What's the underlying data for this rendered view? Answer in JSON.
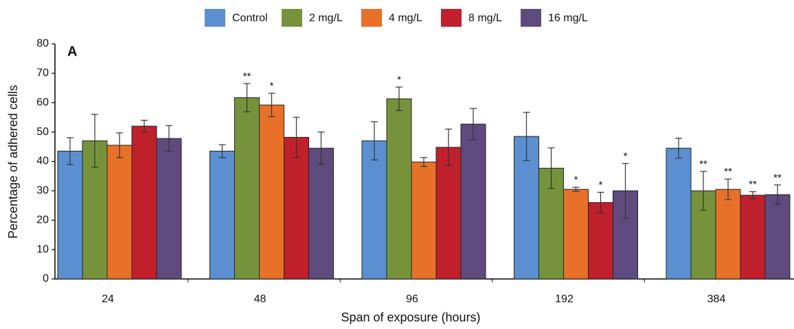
{
  "chart_data": {
    "type": "bar",
    "panel_label": "A",
    "xlabel": "Span of exposure (hours)",
    "ylabel": "Percentage of adhered cells",
    "categories": [
      "24",
      "48",
      "96",
      "192",
      "384"
    ],
    "ylim": [
      0,
      80
    ],
    "yticks": [
      0,
      10,
      20,
      30,
      40,
      50,
      60,
      70,
      80
    ],
    "legend": "top",
    "series": [
      {
        "name": "Control",
        "color": "#5b8fd0",
        "values": [
          43.5,
          43.5,
          47,
          48.5,
          44.5
        ],
        "errors": [
          4.6,
          2.2,
          6.5,
          8.2,
          3.4
        ],
        "annotations": [
          null,
          null,
          null,
          null,
          null
        ]
      },
      {
        "name": "2 mg/L",
        "color": "#76933c",
        "values": [
          47,
          61.7,
          61.3,
          37.7,
          30
        ],
        "errors": [
          9,
          4.8,
          4,
          6.9,
          6.6
        ],
        "annotations": [
          null,
          "**",
          "*",
          null,
          "**"
        ]
      },
      {
        "name": "4 mg/L",
        "color": "#e8712a",
        "values": [
          45.5,
          59.2,
          39.8,
          30.5,
          30.5
        ],
        "errors": [
          4.2,
          4,
          1.5,
          0.7,
          3.5
        ],
        "annotations": [
          null,
          "*",
          null,
          "*",
          "**"
        ]
      },
      {
        "name": "8 mg/L",
        "color": "#c0202c",
        "values": [
          52,
          48.2,
          44.8,
          26,
          28.5
        ],
        "errors": [
          2,
          6.8,
          6.2,
          3.5,
          1.2
        ],
        "annotations": [
          null,
          null,
          null,
          "*",
          "**"
        ]
      },
      {
        "name": "16 mg/L",
        "color": "#5f4a7d",
        "values": [
          47.8,
          44.5,
          52.7,
          30,
          28.7
        ],
        "errors": [
          4.4,
          5.5,
          5.3,
          9.3,
          3.3
        ],
        "annotations": [
          null,
          null,
          null,
          "*",
          "**"
        ]
      }
    ]
  }
}
